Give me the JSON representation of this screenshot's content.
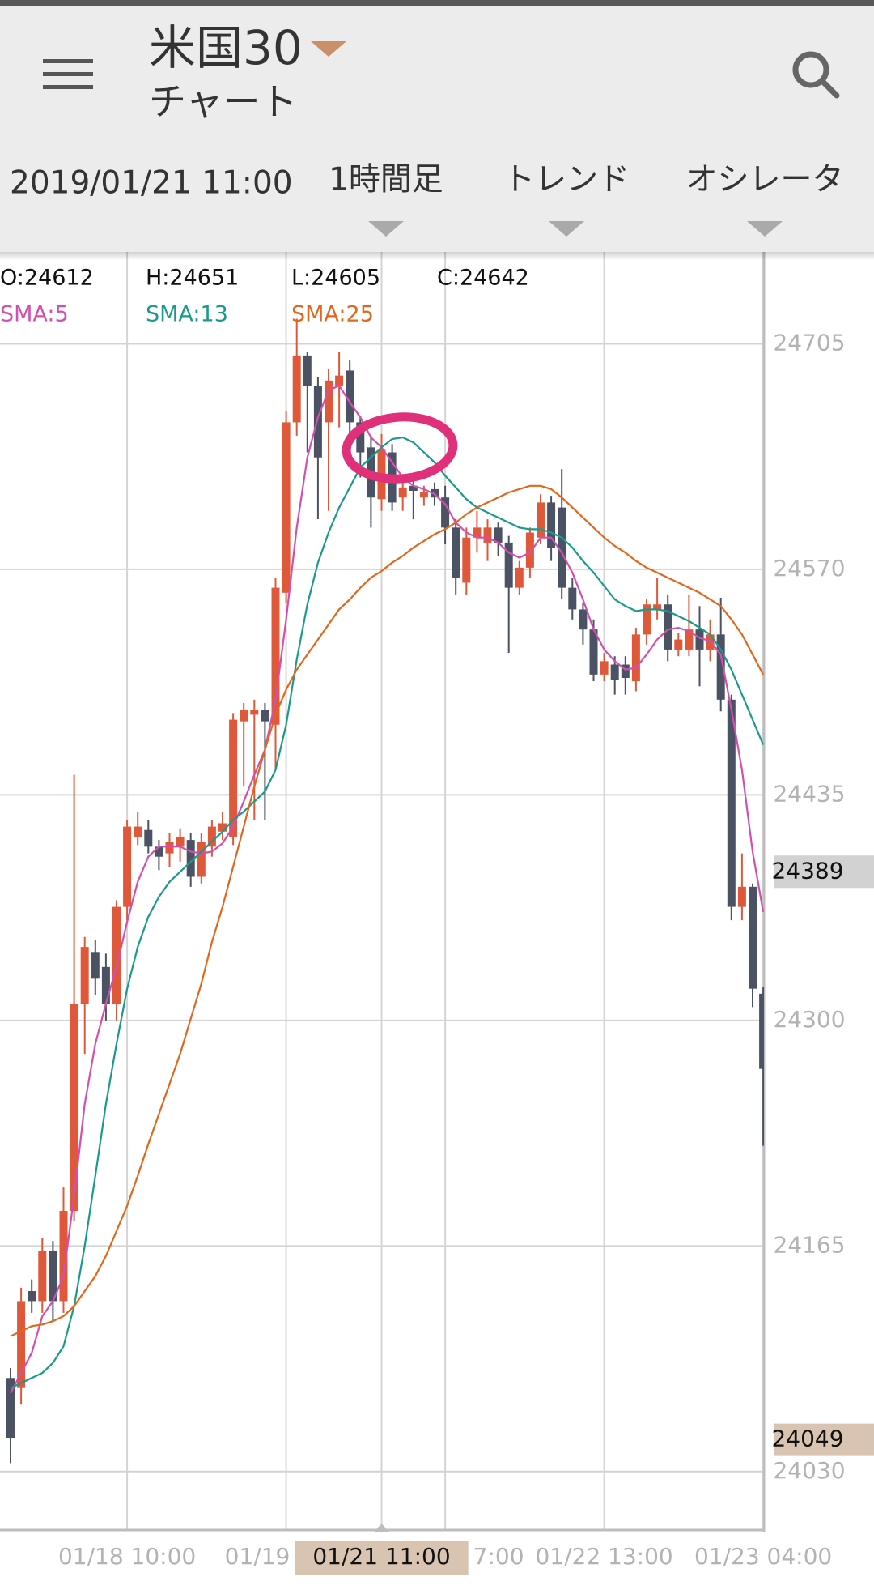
{
  "header": {
    "title": "米国30",
    "subtitle": "チャート"
  },
  "toolbar": {
    "datetime": "2019/01/21 11:00",
    "timeframe": "1時間足",
    "trend": "トレンド",
    "oscillator": "オシレータ"
  },
  "ohlc_info": [
    "O:24612",
    "H:24651",
    "L:24605",
    "C:24642"
  ],
  "chart_data": {
    "type": "candlestick",
    "categories": [
      null,
      null,
      null,
      null,
      null,
      null,
      null,
      null,
      null,
      null,
      null,
      "01/18 10:00",
      null,
      null,
      null,
      null,
      null,
      null,
      null,
      null,
      null,
      null,
      null,
      null,
      null,
      null,
      "01/19",
      null,
      null,
      null,
      null,
      null,
      null,
      null,
      null,
      "01/21 11:00",
      null,
      null,
      null,
      null,
      null,
      "7:00",
      null,
      null,
      null,
      null,
      null,
      null,
      null,
      null,
      null,
      null,
      null,
      null,
      null,
      null,
      "01/22 13:00",
      null,
      null,
      null,
      null,
      null,
      null,
      null,
      null,
      null,
      null,
      null,
      null,
      null,
      null,
      "01/23 04:00"
    ],
    "open": [
      24086,
      24080,
      24138,
      24132,
      24162,
      24132,
      24186,
      24310,
      24341,
      24332,
      24310,
      24368,
      24410,
      24414,
      24404,
      24400,
      24404,
      24408,
      24386,
      24404,
      24413,
      24410,
      24479,
      24483,
      24486,
      24477,
      24556,
      24658,
      24698,
      24680,
      24658,
      24680,
      24689,
      24658,
      24643,
      24612,
      24640,
      24613,
      24620,
      24613,
      24618,
      24613,
      24595,
      24562,
      24589,
      24586,
      24595,
      24586,
      24559,
      24571,
      24589,
      24610,
      24607,
      24559,
      24546,
      24534,
      24507,
      24513,
      24513,
      24503,
      24531,
      24546,
      24549,
      24522,
      24522,
      24534,
      24522,
      24531,
      24492,
      24368,
      24380,
      24316
    ],
    "high": [
      24092,
      24140,
      24145,
      24170,
      24168,
      24200,
      24447,
      24350,
      24348,
      24340,
      24372,
      24420,
      24425,
      24420,
      24408,
      24412,
      24415,
      24412,
      24412,
      24420,
      24425,
      24484,
      24490,
      24492,
      24490,
      24565,
      24665,
      24720,
      24700,
      24685,
      24690,
      24700,
      24695,
      24662,
      24650,
      24651,
      24645,
      24625,
      24623,
      24620,
      24622,
      24620,
      24600,
      24595,
      24605,
      24600,
      24598,
      24590,
      24575,
      24595,
      24615,
      24614,
      24630,
      24565,
      24550,
      24540,
      24520,
      24518,
      24518,
      24535,
      24552,
      24565,
      24555,
      24532,
      24555,
      24548,
      24540,
      24553,
      24495,
      24400,
      24382,
      24320
    ],
    "low": [
      24035,
      24070,
      24125,
      24125,
      24120,
      24125,
      24180,
      24280,
      24315,
      24300,
      24300,
      24360,
      24405,
      24400,
      24390,
      24392,
      24395,
      24380,
      24382,
      24398,
      24408,
      24405,
      24440,
      24420,
      24420,
      24450,
      24550,
      24650,
      24640,
      24600,
      24605,
      24655,
      24640,
      24625,
      24595,
      24605,
      24605,
      24605,
      24600,
      24608,
      24608,
      24585,
      24555,
      24555,
      24580,
      24575,
      24578,
      24520,
      24555,
      24565,
      24585,
      24575,
      24552,
      24540,
      24525,
      24503,
      24503,
      24495,
      24495,
      24497,
      24525,
      24540,
      24515,
      24518,
      24518,
      24500,
      24515,
      24485,
      24360,
      24360,
      24308,
      24225
    ],
    "close": [
      24050,
      24132,
      24132,
      24162,
      24132,
      24186,
      24310,
      24344,
      24325,
      24310,
      24368,
      24416,
      24416,
      24404,
      24398,
      24407,
      24410,
      24386,
      24407,
      24416,
      24418,
      24480,
      24486,
      24486,
      24479,
      24559,
      24658,
      24698,
      24680,
      24637,
      24683,
      24686,
      24658,
      24640,
      24613,
      24642,
      24610,
      24619,
      24617,
      24616,
      24613,
      24595,
      24565,
      24589,
      24595,
      24595,
      24586,
      24559,
      24571,
      24592,
      24610,
      24583,
      24559,
      24546,
      24534,
      24507,
      24515,
      24504,
      24505,
      24531,
      24549,
      24549,
      24522,
      24528,
      24534,
      24522,
      24531,
      24492,
      24368,
      24380,
      24319,
      24271
    ],
    "up_color": "#e0583a",
    "down_color": "#4b5263",
    "series": [
      {
        "name": "SMA:5",
        "color": "#d24fb2",
        "values": [
          24077,
          24089,
          24101,
          24123,
          24132,
          24147,
          24195,
          24250,
          24286,
          24310,
          24332,
          24359,
          24383,
          24398,
          24404,
          24404,
          24404,
          24401,
          24400,
          24401,
          24406,
          24416,
          24431,
          24447,
          24462,
          24492,
          24540,
          24595,
          24637,
          24661,
          24677,
          24680,
          24670,
          24661,
          24649,
          24643,
          24634,
          24625,
          24620,
          24618,
          24615,
          24609,
          24598,
          24592,
          24589,
          24589,
          24586,
          24580,
          24577,
          24580,
          24589,
          24589,
          24580,
          24568,
          24552,
          24534,
          24522,
          24515,
          24510,
          24511,
          24519,
          24528,
          24534,
          24535,
          24533,
          24529,
          24527,
          24519,
          24486,
          24450,
          24401,
          24365
        ]
      },
      {
        "name": "SMA:13",
        "color": "#1b9a8c",
        "values": [
          24080,
          24083,
          24086,
          24089,
          24095,
          24105,
          24129,
          24165,
          24207,
          24250,
          24286,
          24319,
          24344,
          24362,
          24374,
          24383,
          24389,
          24395,
          24401,
          24407,
          24413,
          24420,
          24425,
          24431,
          24437,
          24450,
          24477,
          24516,
          24549,
          24574,
          24592,
          24607,
          24619,
          24631,
          24637,
          24643,
          24648,
          24649,
          24646,
          24640,
          24634,
          24626,
          24619,
          24612,
          24607,
          24604,
          24601,
          24598,
          24595,
          24594,
          24594,
          24592,
          24589,
          24583,
          24575,
          24568,
          24560,
          24552,
          24548,
          24545,
          24546,
          24546,
          24545,
          24542,
          24539,
          24535,
          24531,
          24522,
          24510,
          24495,
          24480,
          24465
        ]
      },
      {
        "name": "SMA:25",
        "color": "#e0671c",
        "values": [
          24111,
          24114,
          24117,
          24118,
          24120,
          24123,
          24129,
          24138,
          24147,
          24159,
          24174,
          24189,
          24207,
          24226,
          24244,
          24262,
          24280,
          24301,
          24322,
          24347,
          24368,
          24392,
          24416,
          24440,
          24462,
          24483,
          24498,
          24510,
          24519,
          24528,
          24537,
          24546,
          24552,
          24559,
          24565,
          24569,
          24574,
          24578,
          24583,
          24587,
          24591,
          24594,
          24598,
          24603,
          24607,
          24610,
          24613,
          24616,
          24618,
          24620,
          24620,
          24618,
          24613,
          24607,
          24601,
          24595,
          24589,
          24584,
          24580,
          24575,
          24571,
          24568,
          24565,
          24562,
          24559,
          24556,
          24552,
          24548,
          24540,
          24531,
          24519,
          24507
        ]
      }
    ],
    "ylim": [
      23995,
      24760
    ],
    "yticks": [
      24030,
      24165,
      24300,
      24435,
      24570,
      24705
    ],
    "grid": true,
    "price_markers": [
      {
        "value": 24389,
        "color": "#d2d2d2"
      },
      {
        "value": 24049,
        "color": "#d8c4b0"
      }
    ],
    "crosshair_index": 35
  }
}
